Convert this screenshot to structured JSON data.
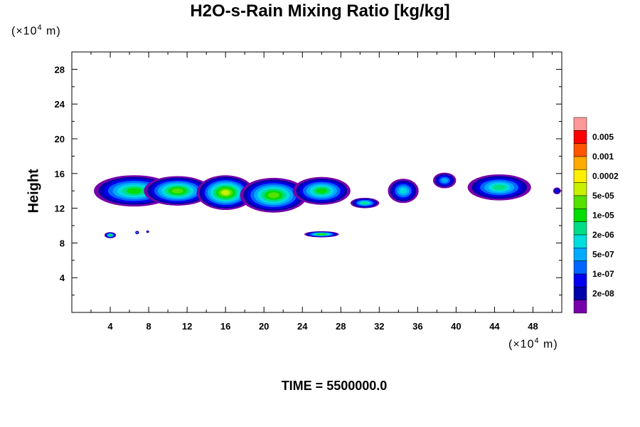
{
  "chart_data": {
    "type": "heatmap",
    "title": "H2O-s-Rain Mixing Ratio [kg/kg]",
    "ylabel": "Height",
    "x_unit": [
      "(×10",
      "4",
      " m)"
    ],
    "y_unit": [
      "(×10",
      "4",
      " m)"
    ],
    "x_ticks": [
      "4",
      "8",
      "12",
      "16",
      "20",
      "24",
      "28",
      "32",
      "36",
      "40",
      "44",
      "48"
    ],
    "y_ticks": [
      "4",
      "8",
      "12",
      "16",
      "20",
      "24",
      "28"
    ],
    "xlim": [
      0,
      51
    ],
    "ylim": [
      0,
      30
    ],
    "footer": "TIME = 5500000.0",
    "colorbar": {
      "labels": [
        "0.005",
        "0.001",
        "0.0002",
        "5e-05",
        "1e-05",
        "2e-06",
        "5e-07",
        "1e-07",
        "2e-08"
      ],
      "colors": [
        "#ff9999",
        "#ff0000",
        "#ff5500",
        "#ffaa00",
        "#ffee00",
        "#c8f000",
        "#55e000",
        "#00dd00",
        "#00dd88",
        "#00dddd",
        "#00aaff",
        "#0066ff",
        "#0000ee",
        "#0000aa",
        "#7700aa"
      ]
    },
    "clouds": [
      {
        "x": 6.5,
        "y": 14.0,
        "rx": 4.2,
        "ry": 1.8,
        "level": 8
      },
      {
        "x": 11.0,
        "y": 14.0,
        "rx": 3.5,
        "ry": 1.7,
        "level": 9
      },
      {
        "x": 16.0,
        "y": 13.8,
        "rx": 3.0,
        "ry": 2.0,
        "level": 10
      },
      {
        "x": 21.0,
        "y": 13.5,
        "rx": 3.5,
        "ry": 2.0,
        "level": 9
      },
      {
        "x": 26.0,
        "y": 14.0,
        "rx": 3.0,
        "ry": 1.6,
        "level": 8
      },
      {
        "x": 30.5,
        "y": 12.6,
        "rx": 1.5,
        "ry": 0.6,
        "level": 7
      },
      {
        "x": 34.5,
        "y": 14.0,
        "rx": 1.6,
        "ry": 1.4,
        "level": 6
      },
      {
        "x": 38.8,
        "y": 15.2,
        "rx": 1.2,
        "ry": 0.9,
        "level": 5
      },
      {
        "x": 44.5,
        "y": 14.4,
        "rx": 3.3,
        "ry": 1.5,
        "level": 7
      },
      {
        "x": 50.5,
        "y": 14.0,
        "rx": 0.4,
        "ry": 0.4,
        "level": 3
      },
      {
        "x": 4.0,
        "y": 8.9,
        "rx": 0.6,
        "ry": 0.35,
        "level": 8
      },
      {
        "x": 6.8,
        "y": 9.2,
        "rx": 0.2,
        "ry": 0.2,
        "level": 5
      },
      {
        "x": 7.9,
        "y": 9.3,
        "rx": 0.15,
        "ry": 0.15,
        "level": 4
      },
      {
        "x": 26.0,
        "y": 9.0,
        "rx": 1.8,
        "ry": 0.35,
        "level": 9
      }
    ]
  }
}
